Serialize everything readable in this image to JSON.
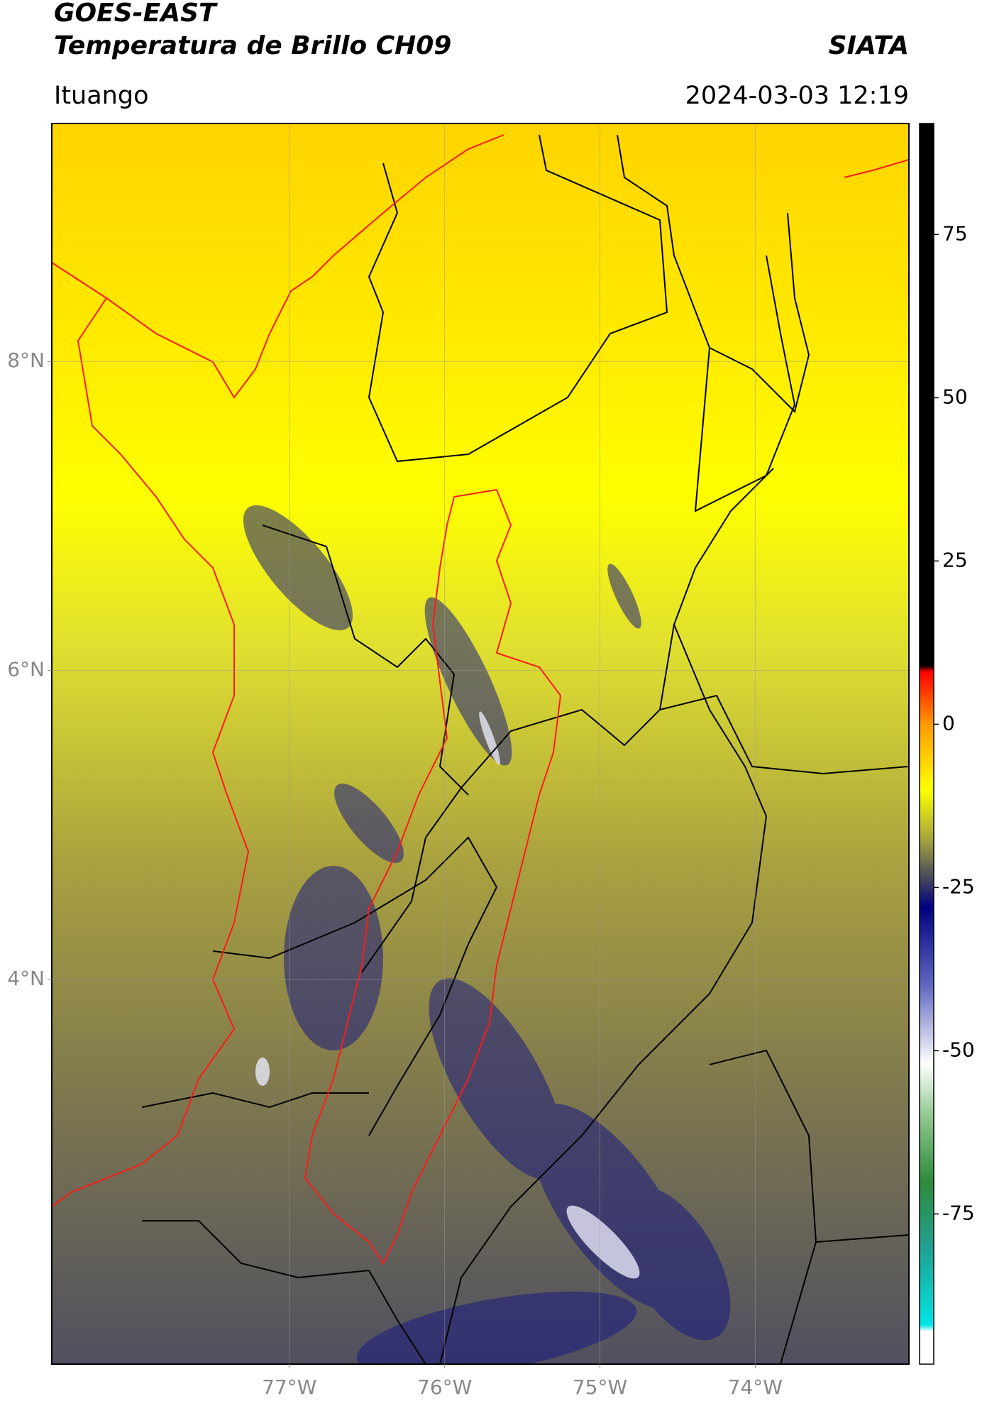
{
  "chart_data": {
    "type": "map",
    "title": "GOES-EAST",
    "subtitle": "Temperatura de Brillo CH09",
    "source": "SIATA",
    "location": "Ituango",
    "timestamp": "2024-03-03 12:19",
    "xlim": [
      -78.53,
      -73.01
    ],
    "ylim": [
      1.51,
      9.54
    ],
    "xticks": [
      {
        "value": -77,
        "label": "77°W"
      },
      {
        "value": -76,
        "label": "76°W"
      },
      {
        "value": -75,
        "label": "75°W"
      },
      {
        "value": -74,
        "label": "74°W"
      }
    ],
    "yticks": [
      {
        "value": 4,
        "label": "4°N"
      },
      {
        "value": 6,
        "label": "6°N"
      },
      {
        "value": 8,
        "label": "8°N"
      }
    ],
    "grid": true,
    "clim": [
      -98,
      92
    ],
    "cticks": [
      -75,
      -50,
      -25,
      0,
      25,
      50,
      75
    ],
    "colormap": [
      {
        "value": -98,
        "color": "#ffffff"
      },
      {
        "value": -93,
        "color": "#ffffff"
      },
      {
        "value": -92,
        "color": "#00e5e5"
      },
      {
        "value": -80,
        "color": "#20a090"
      },
      {
        "value": -70,
        "color": "#2e8b3a"
      },
      {
        "value": -60,
        "color": "#90c890"
      },
      {
        "value": -52,
        "color": "#ffffff"
      },
      {
        "value": -40,
        "color": "#6068c0"
      },
      {
        "value": -28,
        "color": "#000080"
      },
      {
        "value": -24,
        "color": "#404060"
      },
      {
        "value": -18,
        "color": "#a0a040"
      },
      {
        "value": -10,
        "color": "#ffff00"
      },
      {
        "value": 0,
        "color": "#ff9900"
      },
      {
        "value": 8,
        "color": "#ff0000"
      },
      {
        "value": 9,
        "color": "#000000"
      },
      {
        "value": 92,
        "color": "#000000"
      }
    ]
  }
}
